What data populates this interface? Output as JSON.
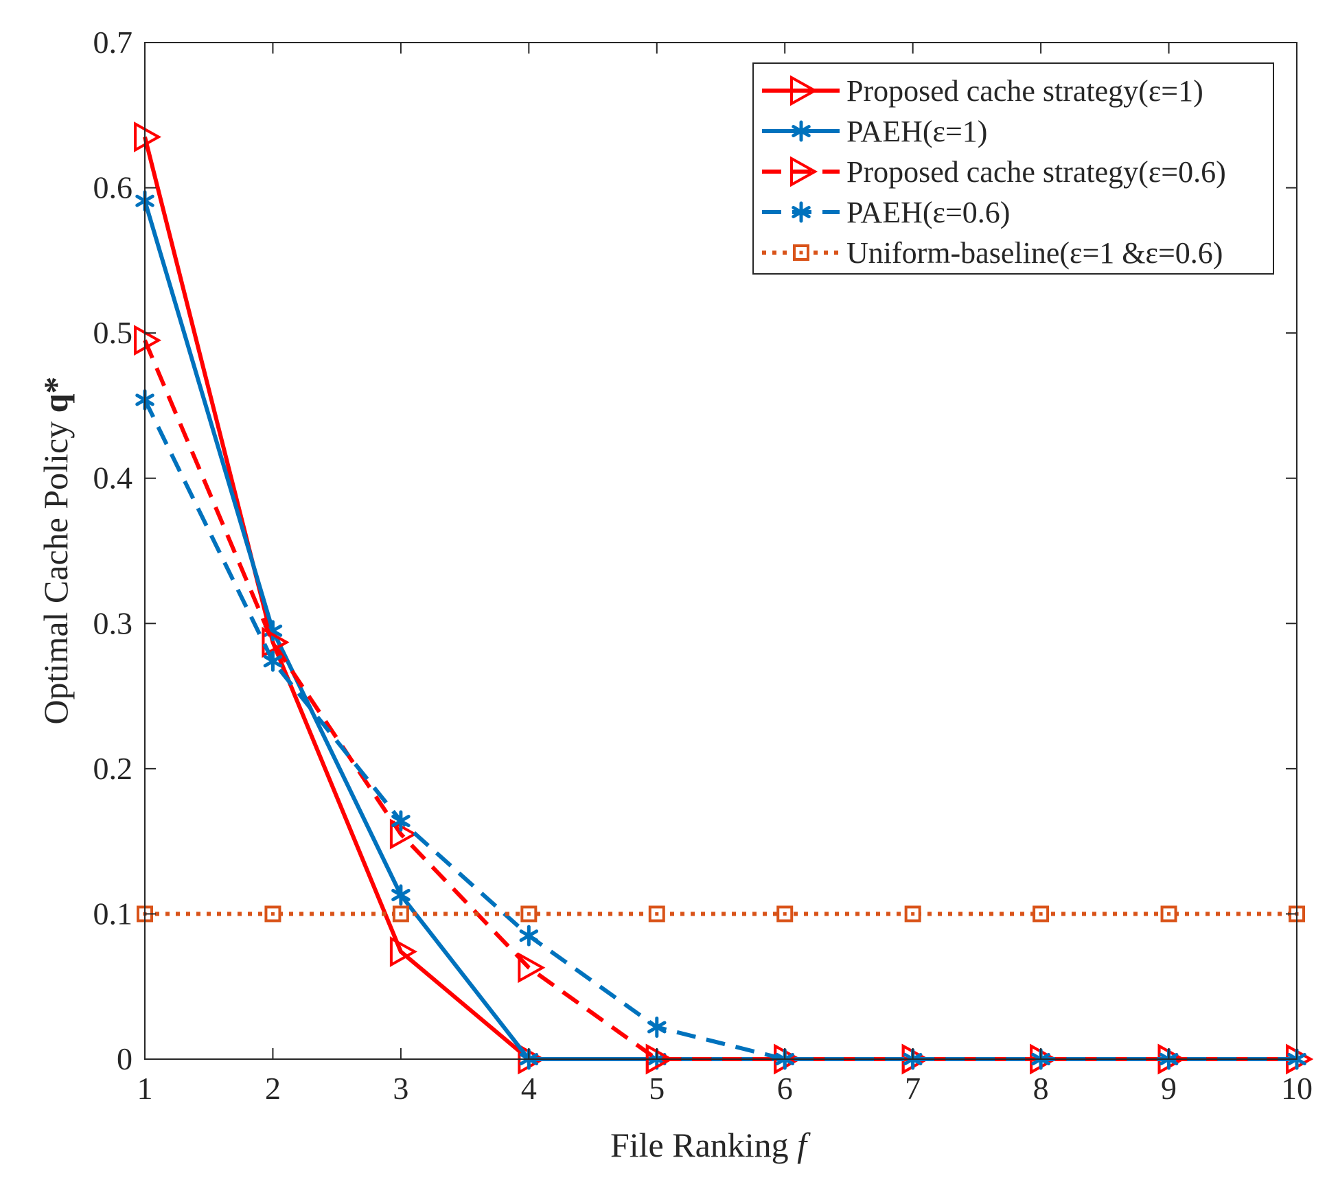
{
  "chart_data": {
    "type": "line",
    "title": "",
    "xlabel": "File Ranking",
    "xlabel_var": "f",
    "ylabel": "Optimal Cache Policy",
    "ylabel_var": "q*",
    "x": [
      1,
      2,
      3,
      4,
      5,
      6,
      7,
      8,
      9,
      10
    ],
    "xlim": [
      1,
      10
    ],
    "ylim": [
      0,
      0.7
    ],
    "xticks": [
      "1",
      "2",
      "3",
      "4",
      "5",
      "6",
      "7",
      "8",
      "9",
      "10"
    ],
    "yticks": [
      "0",
      "0.1",
      "0.2",
      "0.3",
      "0.4",
      "0.5",
      "0.6",
      "0.7"
    ],
    "ytick_values": [
      0,
      0.1,
      0.2,
      0.3,
      0.4,
      0.5,
      0.6,
      0.7
    ],
    "grid": false,
    "legend_position": "top-right",
    "series": [
      {
        "name": "Proposed cache strategy(ε=1)",
        "values": [
          0.635,
          0.287,
          0.074,
          0,
          0,
          0,
          0,
          0,
          0,
          0
        ],
        "color": "#ff0000",
        "line_style": "solid",
        "marker": "triangle-right"
      },
      {
        "name": "PAEH(ε=1)",
        "values": [
          0.591,
          0.295,
          0.113,
          0,
          0,
          0,
          0,
          0,
          0,
          0
        ],
        "color": "#0072bd",
        "line_style": "solid",
        "marker": "asterisk"
      },
      {
        "name": "Proposed cache strategy(ε=0.6)",
        "values": [
          0.495,
          0.287,
          0.155,
          0.063,
          0,
          0,
          0,
          0,
          0,
          0
        ],
        "color": "#ff0000",
        "line_style": "dashed",
        "marker": "triangle-right"
      },
      {
        "name": "PAEH(ε=0.6)",
        "values": [
          0.454,
          0.274,
          0.164,
          0.085,
          0.022,
          0,
          0,
          0,
          0,
          0
        ],
        "color": "#0072bd",
        "line_style": "dashed",
        "marker": "asterisk"
      },
      {
        "name": "Uniform-baseline(ε=1 &ε=0.6)",
        "values": [
          0.1,
          0.1,
          0.1,
          0.1,
          0.1,
          0.1,
          0.1,
          0.1,
          0.1,
          0.1
        ],
        "color": "#d95319",
        "line_style": "dotted",
        "marker": "square"
      }
    ]
  }
}
